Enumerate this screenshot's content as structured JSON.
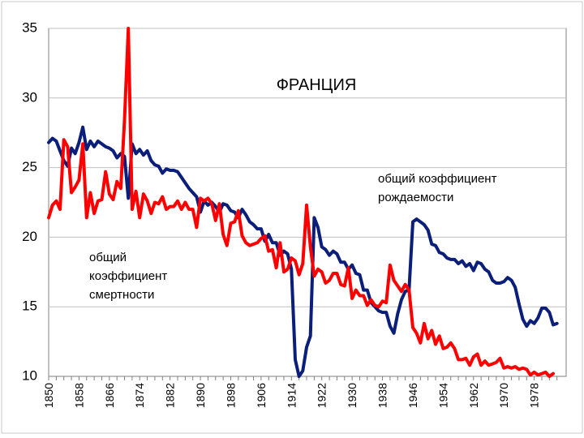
{
  "chart_data": {
    "type": "line",
    "title": "ФРАНЦИЯ",
    "xlabel": "",
    "ylabel": "",
    "ylim": [
      10,
      35
    ],
    "xlim": [
      1850,
      1983
    ],
    "yticks": [
      10,
      15,
      20,
      25,
      30,
      35
    ],
    "xticks": [
      1850,
      1858,
      1866,
      1874,
      1882,
      1890,
      1898,
      1906,
      1914,
      1922,
      1930,
      1938,
      1946,
      1954,
      1962,
      1970,
      1978
    ],
    "grid": true,
    "annotations": [
      {
        "lines": [
          "общий коэффициент",
          "рождаемости"
        ]
      },
      {
        "lines": [
          "общий",
          "коэффициент",
          "смертности"
        ]
      }
    ],
    "series": [
      {
        "name": "общий коэффициент рождаемости",
        "color": "#0b1e7a",
        "points": [
          [
            1850,
            26.8
          ],
          [
            1851,
            27.1
          ],
          [
            1852,
            26.9
          ],
          [
            1853,
            26.2
          ],
          [
            1854,
            25.5
          ],
          [
            1855,
            25.1
          ],
          [
            1856,
            26.4
          ],
          [
            1857,
            26.0
          ],
          [
            1858,
            26.8
          ],
          [
            1859,
            27.9
          ],
          [
            1860,
            26.3
          ],
          [
            1861,
            26.9
          ],
          [
            1862,
            26.5
          ],
          [
            1863,
            26.9
          ],
          [
            1864,
            26.7
          ],
          [
            1865,
            26.5
          ],
          [
            1866,
            26.4
          ],
          [
            1867,
            26.2
          ],
          [
            1868,
            25.7
          ],
          [
            1869,
            26.0
          ],
          [
            1870,
            25.8
          ],
          [
            1871,
            22.8
          ],
          [
            1872,
            26.7
          ],
          [
            1873,
            26.0
          ],
          [
            1874,
            26.3
          ],
          [
            1875,
            25.9
          ],
          [
            1876,
            26.2
          ],
          [
            1877,
            25.5
          ],
          [
            1878,
            25.2
          ],
          [
            1879,
            25.1
          ],
          [
            1880,
            24.6
          ],
          [
            1881,
            24.9
          ],
          [
            1882,
            24.8
          ],
          [
            1883,
            24.8
          ],
          [
            1884,
            24.7
          ],
          [
            1885,
            24.3
          ],
          [
            1886,
            23.9
          ],
          [
            1887,
            23.5
          ],
          [
            1888,
            23.2
          ],
          [
            1889,
            22.9
          ],
          [
            1890,
            21.8
          ],
          [
            1891,
            22.6
          ],
          [
            1892,
            22.3
          ],
          [
            1893,
            22.5
          ],
          [
            1894,
            22.2
          ],
          [
            1895,
            21.8
          ],
          [
            1896,
            22.4
          ],
          [
            1897,
            22.3
          ],
          [
            1898,
            21.9
          ],
          [
            1899,
            21.8
          ],
          [
            1900,
            21.4
          ],
          [
            1901,
            22.0
          ],
          [
            1902,
            21.6
          ],
          [
            1903,
            21.1
          ],
          [
            1904,
            20.9
          ],
          [
            1905,
            20.6
          ],
          [
            1906,
            20.6
          ],
          [
            1907,
            19.7
          ],
          [
            1908,
            20.2
          ],
          [
            1909,
            19.6
          ],
          [
            1910,
            19.6
          ],
          [
            1911,
            18.7
          ],
          [
            1912,
            19.0
          ],
          [
            1913,
            18.8
          ],
          [
            1914,
            17.7
          ],
          [
            1915,
            11.2
          ],
          [
            1916,
            9.5
          ],
          [
            1917,
            10.4
          ],
          [
            1918,
            12.1
          ],
          [
            1919,
            12.9
          ],
          [
            1920,
            21.4
          ],
          [
            1921,
            20.7
          ],
          [
            1922,
            19.3
          ],
          [
            1923,
            19.1
          ],
          [
            1924,
            18.7
          ],
          [
            1925,
            19.0
          ],
          [
            1926,
            18.8
          ],
          [
            1927,
            18.2
          ],
          [
            1928,
            18.2
          ],
          [
            1929,
            17.7
          ],
          [
            1930,
            18.0
          ],
          [
            1931,
            17.4
          ],
          [
            1932,
            17.3
          ],
          [
            1933,
            16.2
          ],
          [
            1934,
            16.2
          ],
          [
            1935,
            15.3
          ],
          [
            1936,
            15.0
          ],
          [
            1937,
            14.7
          ],
          [
            1938,
            14.6
          ],
          [
            1939,
            14.6
          ],
          [
            1940,
            13.6
          ],
          [
            1941,
            13.1
          ],
          [
            1942,
            14.5
          ],
          [
            1943,
            15.5
          ],
          [
            1944,
            16.1
          ],
          [
            1945,
            16.2
          ],
          [
            1946,
            21.1
          ],
          [
            1947,
            21.3
          ],
          [
            1948,
            21.1
          ],
          [
            1949,
            20.9
          ],
          [
            1950,
            20.5
          ],
          [
            1951,
            19.5
          ],
          [
            1952,
            19.4
          ],
          [
            1953,
            18.9
          ],
          [
            1954,
            18.8
          ],
          [
            1955,
            18.5
          ],
          [
            1956,
            18.4
          ],
          [
            1957,
            18.4
          ],
          [
            1958,
            18.1
          ],
          [
            1959,
            18.3
          ],
          [
            1960,
            17.9
          ],
          [
            1961,
            18.1
          ],
          [
            1962,
            17.6
          ],
          [
            1963,
            18.2
          ],
          [
            1964,
            18.1
          ],
          [
            1965,
            17.7
          ],
          [
            1966,
            17.5
          ],
          [
            1967,
            16.9
          ],
          [
            1968,
            16.7
          ],
          [
            1969,
            16.7
          ],
          [
            1970,
            16.8
          ],
          [
            1971,
            17.1
          ],
          [
            1972,
            16.9
          ],
          [
            1973,
            16.4
          ],
          [
            1974,
            15.2
          ],
          [
            1975,
            14.1
          ],
          [
            1976,
            13.6
          ],
          [
            1977,
            14.0
          ],
          [
            1978,
            13.8
          ],
          [
            1979,
            14.2
          ],
          [
            1980,
            14.9
          ],
          [
            1981,
            14.9
          ],
          [
            1982,
            14.6
          ],
          [
            1983,
            13.7
          ],
          [
            1984,
            13.8
          ]
        ]
      },
      {
        "name": "общий коэффициент смертности",
        "color": "#ff0000",
        "points": [
          [
            1850,
            21.4
          ],
          [
            1851,
            22.3
          ],
          [
            1852,
            22.6
          ],
          [
            1853,
            22.0
          ],
          [
            1854,
            27.0
          ],
          [
            1855,
            26.5
          ],
          [
            1856,
            23.2
          ],
          [
            1857,
            23.6
          ],
          [
            1858,
            24.1
          ],
          [
            1859,
            26.7
          ],
          [
            1860,
            21.4
          ],
          [
            1861,
            23.2
          ],
          [
            1862,
            21.7
          ],
          [
            1863,
            22.6
          ],
          [
            1864,
            22.7
          ],
          [
            1865,
            24.7
          ],
          [
            1866,
            23.1
          ],
          [
            1867,
            22.7
          ],
          [
            1868,
            24.0
          ],
          [
            1869,
            23.5
          ],
          [
            1870,
            28.4
          ],
          [
            1871,
            35.1
          ],
          [
            1872,
            22.0
          ],
          [
            1873,
            23.3
          ],
          [
            1874,
            21.4
          ],
          [
            1875,
            23.1
          ],
          [
            1876,
            22.6
          ],
          [
            1877,
            21.7
          ],
          [
            1878,
            22.5
          ],
          [
            1879,
            22.4
          ],
          [
            1880,
            22.9
          ],
          [
            1881,
            22.0
          ],
          [
            1882,
            22.2
          ],
          [
            1883,
            22.2
          ],
          [
            1884,
            22.6
          ],
          [
            1885,
            22.0
          ],
          [
            1886,
            22.5
          ],
          [
            1887,
            22.0
          ],
          [
            1888,
            22.0
          ],
          [
            1889,
            20.7
          ],
          [
            1890,
            22.8
          ],
          [
            1891,
            22.6
          ],
          [
            1892,
            22.8
          ],
          [
            1893,
            22.4
          ],
          [
            1894,
            21.2
          ],
          [
            1895,
            22.4
          ],
          [
            1896,
            20.2
          ],
          [
            1897,
            19.4
          ],
          [
            1898,
            21.0
          ],
          [
            1899,
            21.1
          ],
          [
            1900,
            21.9
          ],
          [
            1901,
            20.1
          ],
          [
            1902,
            19.6
          ],
          [
            1903,
            19.4
          ],
          [
            1904,
            19.5
          ],
          [
            1905,
            19.6
          ],
          [
            1906,
            19.9
          ],
          [
            1907,
            20.1
          ],
          [
            1908,
            19.0
          ],
          [
            1909,
            19.1
          ],
          [
            1910,
            17.8
          ],
          [
            1911,
            19.6
          ],
          [
            1912,
            17.5
          ],
          [
            1913,
            17.7
          ],
          [
            1914,
            18.5
          ],
          [
            1915,
            18.3
          ],
          [
            1916,
            17.3
          ],
          [
            1917,
            18.1
          ],
          [
            1918,
            22.3
          ],
          [
            1919,
            19.3
          ],
          [
            1920,
            17.2
          ],
          [
            1921,
            17.7
          ],
          [
            1922,
            17.5
          ],
          [
            1923,
            16.7
          ],
          [
            1924,
            16.9
          ],
          [
            1925,
            17.4
          ],
          [
            1926,
            17.4
          ],
          [
            1927,
            16.6
          ],
          [
            1928,
            16.5
          ],
          [
            1929,
            17.8
          ],
          [
            1930,
            15.6
          ],
          [
            1931,
            16.2
          ],
          [
            1932,
            15.8
          ],
          [
            1933,
            15.8
          ],
          [
            1934,
            15.1
          ],
          [
            1935,
            15.5
          ],
          [
            1936,
            15.1
          ],
          [
            1937,
            15.0
          ],
          [
            1938,
            15.4
          ],
          [
            1939,
            15.3
          ],
          [
            1940,
            18.0
          ],
          [
            1941,
            16.9
          ],
          [
            1942,
            16.5
          ],
          [
            1943,
            16.1
          ],
          [
            1944,
            16.6
          ],
          [
            1945,
            16.2
          ],
          [
            1946,
            13.5
          ],
          [
            1947,
            13.1
          ],
          [
            1948,
            12.4
          ],
          [
            1949,
            13.8
          ],
          [
            1950,
            12.7
          ],
          [
            1951,
            13.3
          ],
          [
            1952,
            12.3
          ],
          [
            1953,
            12.9
          ],
          [
            1954,
            12.0
          ],
          [
            1955,
            12.1
          ],
          [
            1956,
            12.4
          ],
          [
            1957,
            12.0
          ],
          [
            1958,
            11.2
          ],
          [
            1959,
            11.2
          ],
          [
            1960,
            11.3
          ],
          [
            1961,
            10.8
          ],
          [
            1962,
            11.4
          ],
          [
            1963,
            11.6
          ],
          [
            1964,
            10.8
          ],
          [
            1965,
            11.1
          ],
          [
            1966,
            10.8
          ],
          [
            1967,
            10.9
          ],
          [
            1968,
            11.0
          ],
          [
            1969,
            11.3
          ],
          [
            1970,
            10.6
          ],
          [
            1971,
            10.7
          ],
          [
            1972,
            10.6
          ],
          [
            1973,
            10.7
          ],
          [
            1974,
            10.5
          ],
          [
            1975,
            10.6
          ],
          [
            1976,
            10.5
          ],
          [
            1977,
            10.1
          ],
          [
            1978,
            10.3
          ],
          [
            1979,
            10.1
          ],
          [
            1980,
            10.2
          ],
          [
            1981,
            10.3
          ],
          [
            1982,
            10.0
          ],
          [
            1983,
            10.2
          ]
        ]
      }
    ]
  }
}
